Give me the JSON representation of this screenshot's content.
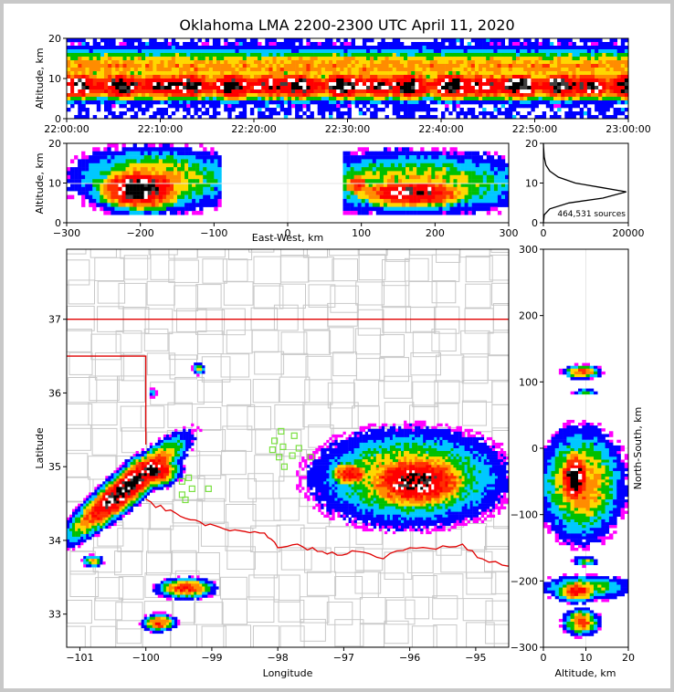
{
  "title": "Oklahoma LMA 2200-2300 UTC April 11, 2020",
  "colors": {
    "border": "#e00000",
    "county": "#c8c8c8",
    "stations": "#7ae040",
    "curve": "#000000",
    "density": [
      "#000000",
      "#404040",
      "#ffffff",
      "#ff0000",
      "#ff3000",
      "#ff8c00",
      "#ffd700",
      "#00c000",
      "#00c8ff",
      "#0000ff",
      "#ff00ff"
    ]
  },
  "chart_data": [
    {
      "id": "time-height",
      "type": "heatmap",
      "title": "Oklahoma LMA 2200-2300 UTC April 11, 2020",
      "xlabel": "",
      "ylabel": "Altitude, km",
      "x_ticks": [
        "22:00:00",
        "22:10:00",
        "22:20:00",
        "22:30:00",
        "22:40:00",
        "22:50:00",
        "23:00:00"
      ],
      "y_ticks": [
        "0",
        "10",
        "20"
      ],
      "ylim": [
        0,
        20
      ],
      "description_data": {
        "core_altitude_km": [
          5,
          11
        ],
        "max_altitude_km": 20
      }
    },
    {
      "id": "ew-height",
      "type": "heatmap",
      "xlabel": "East-West, km",
      "ylabel": "Altitude, km",
      "xlim": [
        -300,
        300
      ],
      "ylim": [
        0,
        20
      ],
      "x_ticks": [
        "−300",
        "−200",
        "−100",
        "0",
        "100",
        "200",
        "300"
      ],
      "y_ticks": [
        "0",
        "10",
        "20"
      ],
      "clusters": [
        {
          "x_range": [
            -300,
            -90
          ],
          "core_x": -200,
          "core_alt": 8
        },
        {
          "x_range": [
            75,
            300
          ],
          "core_x": 170,
          "core_alt": 8
        }
      ]
    },
    {
      "id": "altitude-histogram",
      "type": "line",
      "xlim": [
        0,
        20000
      ],
      "ylim": [
        0,
        20
      ],
      "x_ticks": [
        "0",
        "20000"
      ],
      "y_ticks": [
        "0",
        "10",
        "20"
      ],
      "annotation": "464,531 sources",
      "x": [
        0,
        200,
        1500,
        6000,
        14000,
        19500,
        14000,
        7500,
        3500,
        1500,
        600,
        200,
        50,
        0
      ],
      "y": [
        0,
        2,
        3.5,
        5,
        6.2,
        7.8,
        8.8,
        10,
        11.5,
        13,
        14.5,
        16.5,
        19,
        20
      ]
    },
    {
      "id": "plan-view",
      "type": "heatmap",
      "xlabel": "Longitude",
      "ylabel": "Latitude",
      "xlim": [
        -101.2,
        -94.5
      ],
      "ylim": [
        32.55,
        37.95
      ],
      "x_ticks": [
        "−101",
        "−100",
        "−99",
        "−98",
        "−97",
        "−96",
        "−95"
      ],
      "y_ticks": [
        "33",
        "34",
        "35",
        "36",
        "37"
      ],
      "stations": [
        [
          -97.95,
          35.48
        ],
        [
          -98.05,
          35.35
        ],
        [
          -97.92,
          35.27
        ],
        [
          -98.08,
          35.23
        ],
        [
          -97.75,
          35.42
        ],
        [
          -97.68,
          35.25
        ],
        [
          -97.78,
          35.15
        ],
        [
          -97.5,
          35.13
        ],
        [
          -97.98,
          35.13
        ],
        [
          -97.9,
          35.0
        ],
        [
          -99.35,
          34.85
        ],
        [
          -99.45,
          34.8
        ],
        [
          -99.3,
          34.7
        ],
        [
          -99.45,
          34.62
        ],
        [
          -99.05,
          34.7
        ],
        [
          -99.4,
          34.55
        ]
      ]
    },
    {
      "id": "ns-height",
      "type": "heatmap",
      "xlabel": "Altitude, km",
      "ylabel": "North-South, km",
      "xlim": [
        0,
        20
      ],
      "ylim": [
        -300,
        300
      ],
      "x_ticks": [
        "0",
        "10",
        "20"
      ],
      "y_ticks": [
        "−300",
        "−200",
        "−100",
        "0",
        "100",
        "200",
        "300"
      ]
    }
  ]
}
